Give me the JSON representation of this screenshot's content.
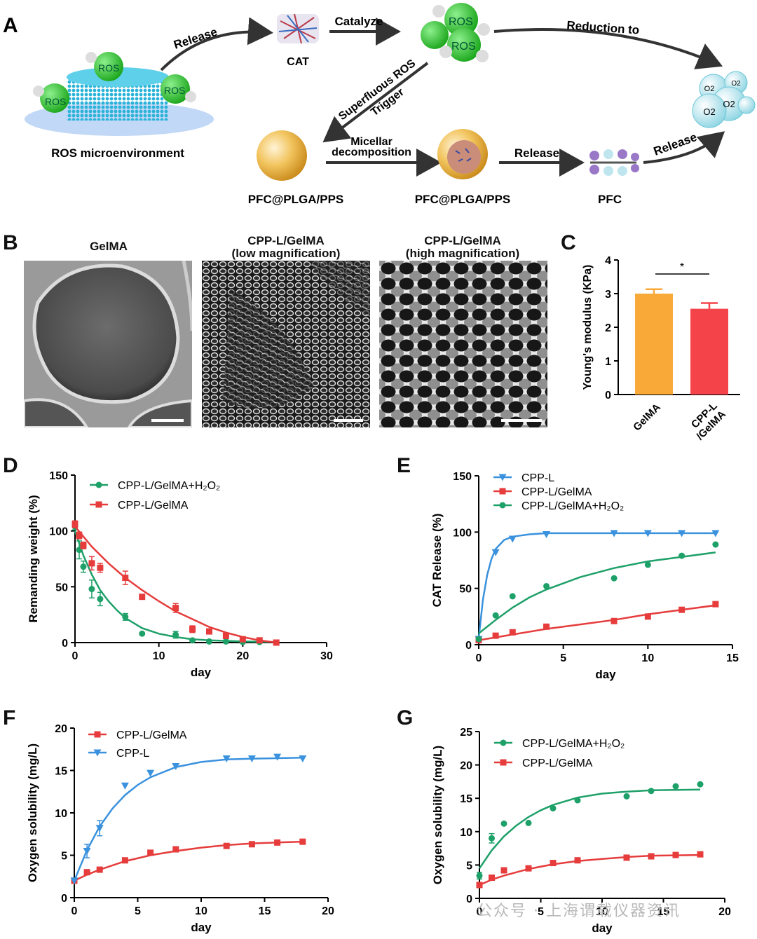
{
  "panels": {
    "A": "A",
    "B": "B",
    "C": "C",
    "D": "D",
    "E": "E",
    "F": "F",
    "G": "G"
  },
  "schematic": {
    "ros_label": "ROS",
    "ros_env": "ROS microenvironment",
    "release": "Release",
    "cat": "CAT",
    "catalyze": "Catalyze",
    "reduction": "Reduction to",
    "superfluous": "Superfluous ROS",
    "trigger": "Trigger",
    "micellar_1": "Micellar",
    "micellar_2": "decomposition",
    "particle": "PFC@PLGA/PPS",
    "pfc": "PFC",
    "o2": "O2"
  },
  "sem_images": {
    "gelma_title": "GelMA",
    "low_title_1": "CPP-L/GelMA",
    "low_title_2": "(low magnification)",
    "high_title_1": "CPP-L/GelMA",
    "high_title_2": "(high magnification)"
  },
  "watermark": "公众号 · 上海谓载仪器资讯",
  "chart_data": [
    {
      "panel": "C",
      "type": "bar",
      "categories": [
        "GelMA",
        "CPP-L/GelMA"
      ],
      "values": [
        3.0,
        2.55
      ],
      "errors": [
        0.13,
        0.17
      ],
      "colors": [
        "#f9a937",
        "#f54449"
      ],
      "ylabel": "Young's modulus (KPa)",
      "ylim": [
        0,
        4
      ],
      "yticks": [
        0,
        1,
        2,
        3,
        4
      ],
      "significance": "*"
    },
    {
      "panel": "D",
      "type": "scatter",
      "xlabel": "day",
      "ylabel": "Remanding weight (%)",
      "xlim": [
        0,
        30
      ],
      "ylim": [
        0,
        150
      ],
      "xticks": [
        0,
        10,
        20,
        30
      ],
      "yticks": [
        0,
        50,
        100,
        150
      ],
      "legend": "top-right",
      "series": [
        {
          "name": "CPP-L/GelMA+H₂O₂",
          "color": "#1ea069",
          "marker": "circle",
          "x": [
            0,
            0.5,
            1,
            2,
            3,
            6,
            8,
            12,
            14,
            16,
            18,
            20,
            22,
            24
          ],
          "y": [
            104,
            83,
            68,
            48,
            39,
            23,
            8,
            7,
            2,
            1,
            1,
            0.5,
            0.5,
            0
          ],
          "err": [
            3,
            8,
            5,
            8,
            6,
            3,
            1,
            3,
            1,
            0.5,
            0.5,
            0.5,
            0.5,
            0
          ],
          "fit": [
            [
              0,
              100
            ],
            [
              1,
              78
            ],
            [
              2,
              61
            ],
            [
              3,
              47
            ],
            [
              4,
              37
            ],
            [
              5,
              29
            ],
            [
              6,
              22
            ],
            [
              8,
              13
            ],
            [
              10,
              8
            ],
            [
              12,
              5
            ],
            [
              14,
              3
            ],
            [
              16,
              2
            ],
            [
              20,
              1
            ],
            [
              24,
              0.5
            ]
          ]
        },
        {
          "name": "CPP-L/GelMA",
          "color": "#e63c3c",
          "marker": "square",
          "x": [
            0,
            0.5,
            1,
            2,
            3,
            6,
            8,
            12,
            14,
            16,
            18,
            20,
            22,
            24
          ],
          "y": [
            106,
            96,
            87,
            71,
            67,
            58,
            41,
            31,
            12,
            10,
            6,
            3,
            2,
            0
          ],
          "err": [
            3,
            3,
            3,
            6,
            4,
            6,
            2,
            4,
            3,
            2,
            2,
            1,
            1,
            0
          ],
          "fit": [
            [
              0,
              104
            ],
            [
              2,
              86
            ],
            [
              4,
              71
            ],
            [
              6,
              58
            ],
            [
              8,
              47
            ],
            [
              10,
              37
            ],
            [
              12,
              28
            ],
            [
              14,
              21
            ],
            [
              16,
              14
            ],
            [
              18,
              9
            ],
            [
              20,
              5
            ],
            [
              22,
              2
            ],
            [
              24,
              0
            ]
          ]
        }
      ]
    },
    {
      "panel": "E",
      "type": "scatter",
      "xlabel": "day",
      "ylabel": "CAT Release (%)",
      "xlim": [
        0,
        15
      ],
      "ylim": [
        0,
        150
      ],
      "xticks": [
        0,
        5,
        10,
        15
      ],
      "yticks": [
        0,
        50,
        100,
        150
      ],
      "legend": "top-right",
      "series": [
        {
          "name": "CPP-L",
          "color": "#3a92de",
          "marker": "triangle",
          "x": [
            0,
            1,
            2,
            4,
            8,
            10,
            12,
            14
          ],
          "y": [
            5,
            82,
            94,
            98,
            99,
            99,
            99,
            99
          ],
          "fit": [
            [
              0,
              6
            ],
            [
              0.25,
              40
            ],
            [
              0.5,
              62
            ],
            [
              0.75,
              76
            ],
            [
              1,
              85
            ],
            [
              1.5,
              93
            ],
            [
              2,
              96
            ],
            [
              3,
              98
            ],
            [
              4,
              99
            ],
            [
              14,
              99
            ]
          ]
        },
        {
          "name": "CPP-L/GelMA",
          "color": "#e63c3c",
          "marker": "square",
          "x": [
            0,
            1,
            2,
            4,
            8,
            10,
            12,
            14
          ],
          "y": [
            4,
            8,
            11,
            16,
            21,
            25,
            31,
            36
          ],
          "fit": [
            [
              0,
              4
            ],
            [
              2,
              9
            ],
            [
              4,
              14
            ],
            [
              6,
              18
            ],
            [
              8,
              22
            ],
            [
              10,
              27
            ],
            [
              12,
              31
            ],
            [
              14,
              35
            ]
          ]
        },
        {
          "name": "CPP-L/GelMA+H₂O₂",
          "color": "#1ea069",
          "marker": "circle",
          "x": [
            0,
            1,
            2,
            4,
            8,
            10,
            12,
            14
          ],
          "y": [
            5,
            26,
            43,
            52,
            59,
            71,
            79,
            89
          ],
          "fit": [
            [
              0,
              10
            ],
            [
              1,
              22
            ],
            [
              2,
              33
            ],
            [
              3,
              42
            ],
            [
              4,
              49
            ],
            [
              6,
              60
            ],
            [
              8,
              68
            ],
            [
              10,
              74
            ],
            [
              12,
              78
            ],
            [
              14,
              82
            ]
          ]
        }
      ]
    },
    {
      "panel": "F",
      "type": "scatter",
      "xlabel": "day",
      "ylabel": "Oxygen solubility (mg/L)",
      "xlim": [
        0,
        20
      ],
      "ylim": [
        0,
        20
      ],
      "xticks": [
        0,
        5,
        10,
        15,
        20
      ],
      "yticks": [
        0,
        5,
        10,
        15,
        20
      ],
      "legend": "top-left",
      "series": [
        {
          "name": "CPP-L/GelMA",
          "color": "#e63c3c",
          "marker": "square",
          "x": [
            0,
            1,
            2,
            4,
            6,
            8,
            12,
            14,
            16,
            18
          ],
          "y": [
            2.0,
            3.0,
            3.3,
            4.4,
            5.3,
            5.7,
            6.1,
            6.3,
            6.5,
            6.6
          ],
          "fit": [
            [
              0,
              2.0
            ],
            [
              1,
              2.7
            ],
            [
              2,
              3.3
            ],
            [
              4,
              4.3
            ],
            [
              6,
              5.0
            ],
            [
              8,
              5.5
            ],
            [
              10,
              5.9
            ],
            [
              12,
              6.2
            ],
            [
              14,
              6.4
            ],
            [
              16,
              6.5
            ],
            [
              18,
              6.6
            ]
          ]
        },
        {
          "name": "CPP-L",
          "color": "#3a92de",
          "marker": "triangle",
          "x": [
            0,
            1,
            2,
            4,
            6,
            8,
            12,
            14,
            16,
            18
          ],
          "y": [
            2.0,
            5.5,
            8.2,
            13.2,
            14.7,
            15.5,
            16.4,
            16.4,
            16.6,
            16.4
          ],
          "err": [
            0,
            0.8,
            0.9,
            0,
            0,
            0,
            0,
            0,
            0,
            0
          ],
          "fit": [
            [
              0,
              2.0
            ],
            [
              1,
              5.6
            ],
            [
              2,
              8.4
            ],
            [
              3,
              10.5
            ],
            [
              4,
              12.1
            ],
            [
              5,
              13.3
            ],
            [
              6,
              14.2
            ],
            [
              8,
              15.4
            ],
            [
              10,
              16.0
            ],
            [
              12,
              16.3
            ],
            [
              14,
              16.4
            ],
            [
              18,
              16.5
            ]
          ]
        }
      ]
    },
    {
      "panel": "G",
      "type": "scatter",
      "xlabel": "day",
      "ylabel": "Oxygen solubility (mg/L)",
      "xlim": [
        0,
        20
      ],
      "ylim": [
        0,
        25
      ],
      "xticks": [
        0,
        5,
        10,
        15,
        20
      ],
      "yticks": [
        0,
        5,
        10,
        15,
        20,
        25
      ],
      "legend": "top-left",
      "series": [
        {
          "name": "CPP-L/GelMA+H₂O₂",
          "color": "#1ea069",
          "marker": "circle",
          "x": [
            0,
            1,
            2,
            4,
            6,
            8,
            12,
            14,
            16,
            18
          ],
          "y": [
            3.4,
            9.0,
            11.2,
            11.3,
            13.5,
            14.7,
            15.3,
            16.1,
            16.8,
            17.1
          ],
          "err": [
            0.5,
            0.7,
            0,
            0,
            0,
            0,
            0,
            0,
            0,
            0
          ],
          "fit": [
            [
              0,
              4.5
            ],
            [
              1,
              7.2
            ],
            [
              2,
              9.3
            ],
            [
              3,
              10.9
            ],
            [
              4,
              12.2
            ],
            [
              5,
              13.2
            ],
            [
              6,
              14.0
            ],
            [
              8,
              15.1
            ],
            [
              10,
              15.7
            ],
            [
              12,
              16.0
            ],
            [
              14,
              16.2
            ],
            [
              18,
              16.3
            ]
          ]
        },
        {
          "name": "CPP-L/GelMA",
          "color": "#e63c3c",
          "marker": "square",
          "x": [
            0,
            1,
            2,
            4,
            6,
            8,
            12,
            14,
            16,
            18
          ],
          "y": [
            2.0,
            3.1,
            4.2,
            4.5,
            5.3,
            5.7,
            6.1,
            6.3,
            6.5,
            6.6
          ],
          "fit": [
            [
              0,
              2.0
            ],
            [
              1,
              2.8
            ],
            [
              2,
              3.4
            ],
            [
              4,
              4.4
            ],
            [
              6,
              5.1
            ],
            [
              8,
              5.6
            ],
            [
              10,
              5.9
            ],
            [
              12,
              6.2
            ],
            [
              14,
              6.4
            ],
            [
              18,
              6.5
            ]
          ]
        }
      ]
    }
  ]
}
